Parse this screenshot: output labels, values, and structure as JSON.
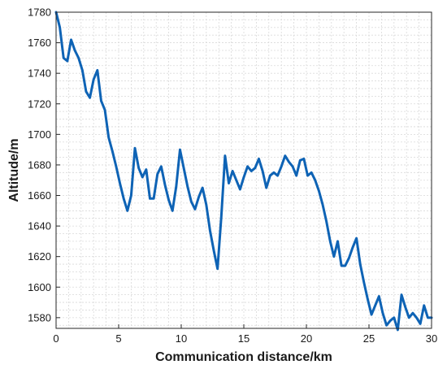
{
  "chart_data": {
    "type": "line",
    "title": "",
    "xlabel": "Communication distance/km",
    "ylabel": "Altitude/m",
    "xlim": [
      0,
      30
    ],
    "ylim": [
      1573,
      1780
    ],
    "xticks": [
      0,
      5,
      10,
      15,
      20,
      25,
      30
    ],
    "yticks": [
      1580,
      1600,
      1620,
      1640,
      1660,
      1680,
      1700,
      1720,
      1740,
      1760,
      1780
    ],
    "grid": true,
    "legend": "none",
    "series": [
      {
        "color": "#0e63b5",
        "x": [
          0,
          0.3,
          0.6,
          0.9,
          1.2,
          1.5,
          1.8,
          2.1,
          2.4,
          2.7,
          3.0,
          3.3,
          3.6,
          3.9,
          4.2,
          4.5,
          4.8,
          5.1,
          5.4,
          5.7,
          6.0,
          6.3,
          6.6,
          6.9,
          7.2,
          7.5,
          7.8,
          8.1,
          8.4,
          8.7,
          9.0,
          9.3,
          9.6,
          9.9,
          10.2,
          10.5,
          10.8,
          11.1,
          11.4,
          11.7,
          12.0,
          12.3,
          12.6,
          12.9,
          13.2,
          13.5,
          13.8,
          14.1,
          14.4,
          14.7,
          15.0,
          15.3,
          15.6,
          15.9,
          16.2,
          16.5,
          16.8,
          17.1,
          17.4,
          17.7,
          18.0,
          18.3,
          18.6,
          18.9,
          19.2,
          19.5,
          19.8,
          20.1,
          20.4,
          20.7,
          21.0,
          21.3,
          21.6,
          21.9,
          22.2,
          22.5,
          22.8,
          23.1,
          23.4,
          23.7,
          24.0,
          24.3,
          24.6,
          24.9,
          25.2,
          25.5,
          25.8,
          26.1,
          26.4,
          26.7,
          27.0,
          27.3,
          27.6,
          27.9,
          28.2,
          28.5,
          28.8,
          29.1,
          29.4,
          29.7,
          30.0
        ],
        "y": [
          1780,
          1770,
          1750,
          1748,
          1762,
          1755,
          1750,
          1742,
          1728,
          1724,
          1736,
          1742,
          1722,
          1716,
          1698,
          1689,
          1679,
          1668,
          1658,
          1650,
          1660,
          1691,
          1678,
          1672,
          1677,
          1658,
          1658,
          1674,
          1679,
          1667,
          1657,
          1650,
          1666,
          1690,
          1678,
          1666,
          1656,
          1651,
          1659,
          1665,
          1654,
          1637,
          1624,
          1612,
          1646,
          1686,
          1668,
          1676,
          1670,
          1664,
          1672,
          1679,
          1676,
          1678,
          1684,
          1676,
          1665,
          1673,
          1675,
          1673,
          1679,
          1686,
          1682,
          1679,
          1673,
          1683,
          1684,
          1673,
          1675,
          1670,
          1663,
          1654,
          1643,
          1630,
          1620,
          1630,
          1614,
          1614,
          1619,
          1626,
          1632,
          1615,
          1603,
          1592,
          1582,
          1588,
          1594,
          1583,
          1575,
          1578,
          1580,
          1572,
          1595,
          1587,
          1580,
          1583,
          1580,
          1576,
          1588,
          1580,
          1580
        ]
      }
    ]
  }
}
